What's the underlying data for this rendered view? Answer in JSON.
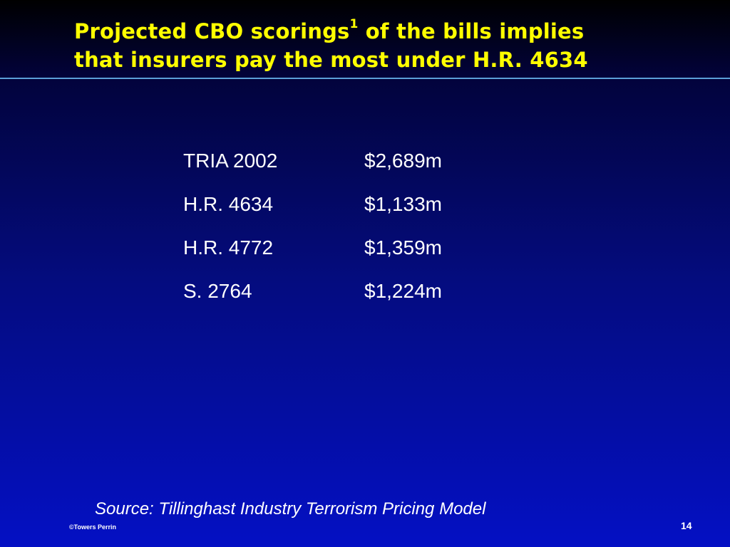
{
  "slide": {
    "title_main": "Projected CBO scorings",
    "title_sup": "1",
    "title_rest_line1": " of the bills implies",
    "title_line2": "that insurers pay the most under H.R. 4634",
    "rows": [
      {
        "bill": "TRIA 2002",
        "cost": "$2,689m"
      },
      {
        "bill": "H.R. 4634",
        "cost": "$1,133m"
      },
      {
        "bill": "H.R. 4772",
        "cost": "$1,359m"
      },
      {
        "bill": "S. 2764",
        "cost": "$1,224m"
      }
    ],
    "source": "Source: Tillinghast Industry Terrorism Pricing Model",
    "copyright": "©Towers Perrin",
    "page_number": "14"
  },
  "colors": {
    "title": "#ffff00",
    "text": "#ffffff",
    "rule": "#5aa0d8",
    "background_top": "#000000",
    "background_bottom": "#0410c4"
  }
}
